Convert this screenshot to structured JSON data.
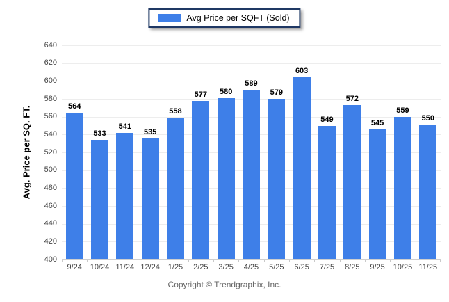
{
  "chart_data": {
    "type": "bar",
    "categories": [
      "9/24",
      "10/24",
      "11/24",
      "12/24",
      "1/25",
      "2/25",
      "3/25",
      "4/25",
      "5/25",
      "6/25",
      "7/25",
      "8/25",
      "9/25",
      "10/25",
      "11/25"
    ],
    "values": [
      564,
      533,
      541,
      535,
      558,
      577,
      580,
      589,
      579,
      603,
      549,
      572,
      545,
      559,
      550
    ],
    "title": "",
    "xlabel": "",
    "ylabel": "Avg. Price per SQ. FT.",
    "ylim": [
      400,
      640
    ],
    "yticks": [
      400,
      420,
      440,
      460,
      480,
      500,
      520,
      540,
      560,
      580,
      600,
      620,
      640
    ],
    "grid": "horizontal",
    "legend_position": "top-center",
    "series_name": "Avg Price per SQFT (Sold)"
  },
  "legend": {
    "label": "Avg Price per SQFT (Sold)"
  },
  "y_axis": {
    "title": "Avg. Price per SQ. FT."
  },
  "footer": {
    "text": "Copyright © Trendgraphix, Inc."
  },
  "colors": {
    "bar": "#3E7FE8",
    "legend_border": "#1F3864",
    "gridline": "#ededed",
    "baseline": "#cfcfcf",
    "tick_label": "#454545",
    "value_label": "#000000",
    "footer_text": "#666666",
    "background": "#ffffff"
  }
}
